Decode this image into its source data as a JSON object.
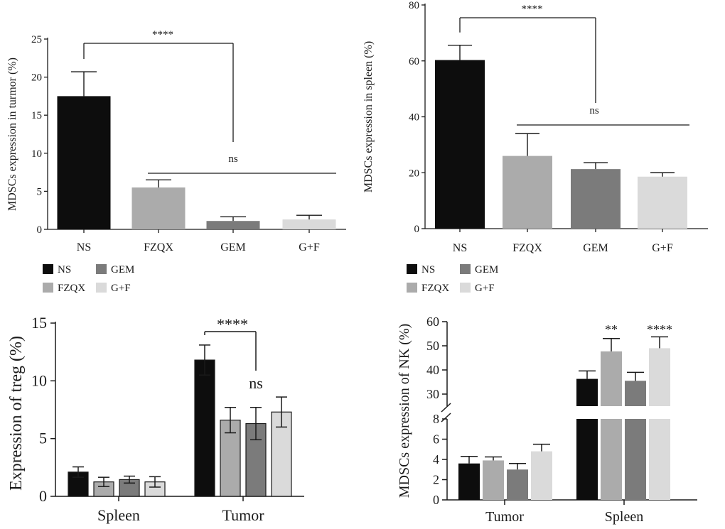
{
  "colors": {
    "NS": "#0d0d0d",
    "FZQX": "#ababab",
    "GEM": "#7b7b7b",
    "G+F": "#dadada",
    "axis": "#1a1a1a"
  },
  "chart_data": [
    {
      "type": "bar",
      "categories": [
        "NS",
        "FZQX",
        "GEM",
        "G+F"
      ],
      "values": [
        17.5,
        5.5,
        1.1,
        1.3
      ],
      "errors": [
        3.2,
        1.0,
        0.55,
        0.55
      ],
      "ylabel": "MDSCs expression in turmor (%)",
      "ylim": [
        0,
        25
      ],
      "yticks": [
        0,
        5,
        10,
        15,
        20,
        25
      ],
      "legend": [
        "NS",
        "FZQX",
        "GEM",
        "G+F"
      ],
      "legend_position": "bottom-left",
      "annotations": [
        {
          "label": "****",
          "from": "NS",
          "to": "GEM"
        },
        {
          "label": "ns",
          "from": "FZQX",
          "to": "G+F"
        }
      ],
      "grid": false
    },
    {
      "type": "bar",
      "categories": [
        "NS",
        "FZQX",
        "GEM",
        "G+F"
      ],
      "values": [
        60.3,
        26.0,
        21.3,
        18.6
      ],
      "errors": [
        5.3,
        8.0,
        2.3,
        1.4
      ],
      "ylabel": "MDSCs expression in spleen (%)",
      "ylim": [
        0,
        80
      ],
      "yticks": [
        0,
        20,
        40,
        60,
        80
      ],
      "legend": [
        "NS",
        "FZQX",
        "GEM",
        "G+F"
      ],
      "legend_position": "bottom-left",
      "annotations": [
        {
          "label": "****",
          "from": "NS",
          "to": "GEM"
        },
        {
          "label": "ns",
          "from": "FZQX",
          "to": "G+F"
        }
      ],
      "grid": false
    },
    {
      "type": "bar",
      "categories": [
        "Spleen",
        "Tumor"
      ],
      "series": [
        {
          "name": "NS",
          "values": [
            2.1,
            11.8
          ],
          "errors": [
            0.45,
            1.3
          ]
        },
        {
          "name": "FZQX",
          "values": [
            1.25,
            6.6
          ],
          "errors": [
            0.4,
            1.1
          ]
        },
        {
          "name": "GEM",
          "values": [
            1.45,
            6.3
          ],
          "errors": [
            0.3,
            1.4
          ]
        },
        {
          "name": "G+F",
          "values": [
            1.25,
            7.3
          ],
          "errors": [
            0.45,
            1.3
          ]
        }
      ],
      "ylabel": "Expression of treg (%)",
      "ylim": [
        0,
        15
      ],
      "yticks": [
        0,
        5,
        10,
        15
      ],
      "annotations": [
        {
          "label": "****",
          "category": "Tumor",
          "from": "NS",
          "to": "GEM"
        },
        {
          "label": "ns",
          "category": "Tumor",
          "series": "GEM"
        }
      ],
      "grid": false
    },
    {
      "type": "bar",
      "categories": [
        "Tumor",
        "Spleen"
      ],
      "series": [
        {
          "name": "NS",
          "values": [
            3.6,
            36.3
          ],
          "errors": [
            0.7,
            3.3
          ]
        },
        {
          "name": "FZQX",
          "values": [
            3.9,
            47.7
          ],
          "errors": [
            0.35,
            5.3
          ]
        },
        {
          "name": "GEM",
          "values": [
            3.0,
            35.5
          ],
          "errors": [
            0.6,
            3.5
          ]
        },
        {
          "name": "G+F",
          "values": [
            4.8,
            49.0
          ],
          "errors": [
            0.7,
            4.7
          ]
        }
      ],
      "ylabel": "MDSCs expression of NK (%)",
      "ylim": [
        0,
        60
      ],
      "axis_break": [
        8,
        25
      ],
      "yticks": [
        0,
        2,
        4,
        6,
        8,
        30,
        40,
        50,
        60
      ],
      "annotations": [
        {
          "label": "**",
          "category": "Spleen",
          "series": "FZQX"
        },
        {
          "label": "****",
          "category": "Spleen",
          "series": "G+F"
        }
      ],
      "grid": false
    }
  ]
}
